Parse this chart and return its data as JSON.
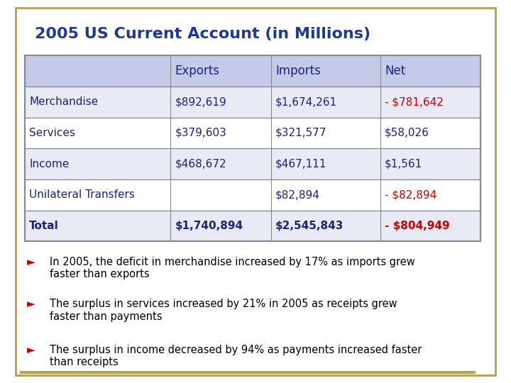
{
  "title": "2005 US Current Account (in Millions)",
  "title_color": "#1F3A93",
  "bg_color": "#FFFFFF",
  "border_color": "#B8A050",
  "table": {
    "col_headers": [
      "",
      "Exports",
      "Imports",
      "Net"
    ],
    "rows": [
      [
        "Merchandise",
        "$892,619",
        "$1,674,261",
        "- $781,642"
      ],
      [
        "Services",
        "$379,603",
        "$321,577",
        "$58,026"
      ],
      [
        "Income",
        "$468,672",
        "$467,111",
        "$1,561"
      ],
      [
        "Unilateral Transfers",
        "",
        "$82,894",
        "- $82,894"
      ],
      [
        "Total",
        "$1,740,894",
        "$2,545,843",
        "- $804,949"
      ]
    ],
    "header_bg": "#C5CAE9",
    "row_bg_even": "#E8EAF6",
    "row_bg_odd": "#FFFFFF",
    "red_color": "#CC0000",
    "black_color": "#000000",
    "blue_color": "#1A237E",
    "grid_color": "#888888",
    "net_red_rows": [
      0,
      3,
      4
    ],
    "net_black_rows": [
      1,
      2
    ]
  },
  "bullets": [
    "In 2005, the deficit in merchandise increased by 17% as imports grew\nfaster than exports",
    "The surplus in services increased by 21% in 2005 as receipts grew\nfaster than payments",
    "The surplus in income decreased by 94% as payments increased faster\nthan receipts"
  ],
  "bullet_color": "#CC0000",
  "bullet_text_color": "#000000",
  "bottom_line_color": "#B8A050"
}
